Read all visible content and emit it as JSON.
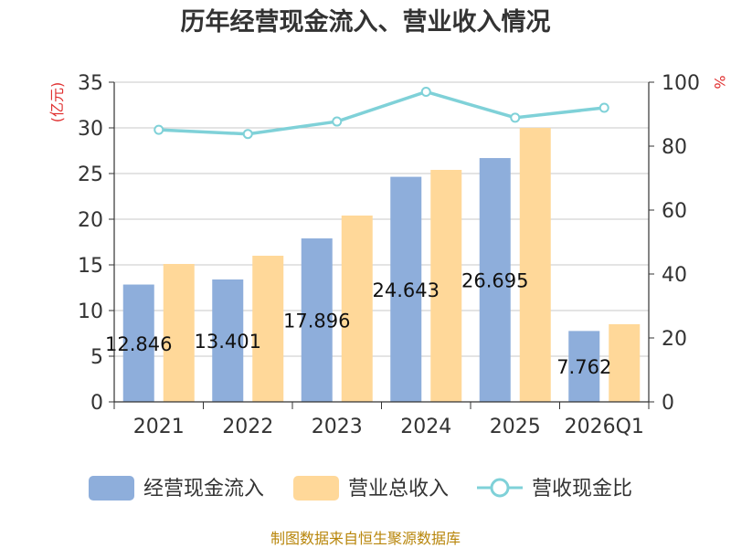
{
  "chart_data": {
    "type": "bar",
    "title": "历年经营现金流入、营业收入情况",
    "categories": [
      "2021",
      "2022",
      "2023",
      "2024",
      "2025",
      "2026Q1"
    ],
    "y_left": {
      "unit": "(亿元)",
      "ylim": [
        0,
        35
      ],
      "ticks": [
        0,
        5,
        10,
        15,
        20,
        25,
        30,
        35
      ]
    },
    "y_right": {
      "unit": "%",
      "ylim": [
        0,
        100
      ],
      "ticks": [
        0,
        20,
        40,
        60,
        80,
        100
      ]
    },
    "series": [
      {
        "name": "经营现金流入",
        "type": "bar",
        "axis": "left",
        "color": "#8eaedb",
        "values": [
          12.846,
          13.401,
          17.896,
          24.643,
          26.695,
          7.762
        ],
        "labels": [
          "12.846",
          "13.401",
          "17.896",
          "24.643",
          "26.695",
          "7.762"
        ]
      },
      {
        "name": "营业总收入",
        "type": "bar",
        "axis": "left",
        "color": "#ffd899",
        "values": [
          15.1,
          16.0,
          20.4,
          25.4,
          30.0,
          8.5
        ]
      },
      {
        "name": "营收现金比",
        "type": "line",
        "axis": "right",
        "color": "#7fd1d8",
        "values": [
          85.1,
          83.8,
          87.7,
          97.0,
          88.9,
          92.0
        ]
      }
    ],
    "grid": true,
    "legend_position": "bottom",
    "source": "制图数据来自恒生聚源数据库"
  }
}
